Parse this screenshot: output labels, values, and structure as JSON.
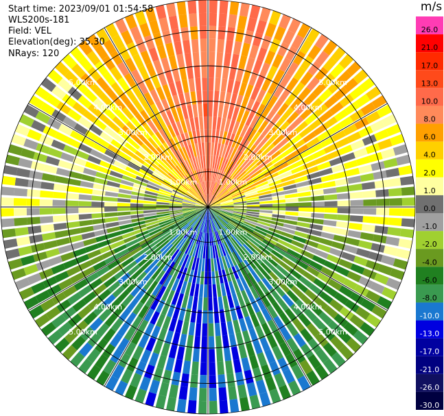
{
  "info": {
    "start_time": "Start time: 2023/09/01 01:54:58",
    "station": "WLS200s-181",
    "field": "Field: VEL",
    "elevation": "Elevation(deg): 35.30",
    "nrays": "NRays: 120"
  },
  "colorbar": {
    "unit": "m/s",
    "bins": [
      {
        "label": "26.0",
        "color": "#ff3cb4"
      },
      {
        "label": "21.0",
        "color": "#ff0000"
      },
      {
        "label": "17.0",
        "color": "#ff2a00"
      },
      {
        "label": "13.0",
        "color": "#ff4a1a"
      },
      {
        "label": "10.0",
        "color": "#ff6a4a"
      },
      {
        "label": "8.0",
        "color": "#ff8a5a"
      },
      {
        "label": "6.0",
        "color": "#ffa000"
      },
      {
        "label": "4.0",
        "color": "#ffd000"
      },
      {
        "label": "2.0",
        "color": "#ffff00"
      },
      {
        "label": "1.0",
        "color": "#ffffa0"
      },
      {
        "label": "0.0",
        "color": "#707070"
      },
      {
        "label": "-1.0",
        "color": "#a0a0a0"
      },
      {
        "label": "-2.0",
        "color": "#a0d030"
      },
      {
        "label": "-4.0",
        "color": "#6a9a20"
      },
      {
        "label": "-6.0",
        "color": "#208020"
      },
      {
        "label": "-8.0",
        "color": "#3a9a50"
      },
      {
        "label": "-10.0",
        "color": "#1a78d0"
      },
      {
        "label": "-13.0",
        "color": "#0000e0"
      },
      {
        "label": "-17.0",
        "color": "#0000a0"
      },
      {
        "label": "-21.0",
        "color": "#000080"
      },
      {
        "label": "-26.0",
        "color": "#101060"
      },
      {
        "label": "-30.0",
        "color": "#000040"
      }
    ]
  },
  "chart_data": {
    "type": "heatmap",
    "subtype": "ppi_polar",
    "field": "VEL",
    "unit": "m/s",
    "n_rays": 120,
    "range_rings_km": [
      1,
      2,
      3,
      4,
      5
    ],
    "ring_labels": [
      "1.00km",
      "2.00km",
      "3.00km",
      "4.00km",
      "5.00km"
    ],
    "max_range_km": 5.7,
    "spokes_deg": [
      0,
      30,
      60,
      90,
      120,
      150,
      180,
      210,
      240,
      270,
      300,
      330
    ],
    "velocity_by_azimuth_deg_cw_from_north": {
      "azimuth": [
        0,
        30,
        60,
        90,
        120,
        150,
        180,
        210,
        240,
        270,
        300,
        330
      ],
      "velocity": [
        12,
        9,
        6,
        0,
        -5,
        -8,
        -11,
        -9,
        -6,
        -1,
        3,
        8
      ]
    },
    "colorbar_range": [
      -30,
      30
    ]
  }
}
